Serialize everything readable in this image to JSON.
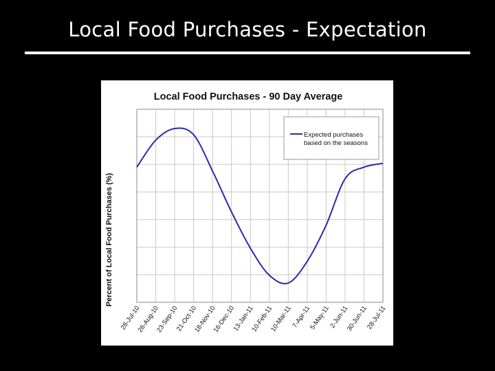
{
  "slide": {
    "title": "Local Food Purchases - Expectation"
  },
  "chart_data": {
    "type": "line",
    "title": "Local Food Purchases - 90 Day Average",
    "xlabel": "",
    "ylabel": "Percent of Local Food Purchases (%)",
    "x_tick_labels": [
      "28-Jul-10",
      "26-Aug-10",
      "23-Sep-10",
      "21-Oct-10",
      "18-Nov-10",
      "16-Dec-10",
      "13-Jan-11",
      "10-Feb-11",
      "10-Mar-11",
      "7-Apr-11",
      "5-May-11",
      "2-Jun-11",
      "30-Jun-11",
      "28-Jul-11"
    ],
    "y_tick_labels_visible": false,
    "grid": true,
    "legend_position": "top-right",
    "colors": {
      "series": "#2a2ab0",
      "grid": "#c8c8c8",
      "background": "#ffffff"
    },
    "series": [
      {
        "name": "Expected purchases based on the seasons",
        "x": [
          "28-Jul-10",
          "26-Aug-10",
          "23-Sep-10",
          "21-Oct-10",
          "18-Nov-10",
          "16-Dec-10",
          "13-Jan-11",
          "10-Feb-11",
          "10-Mar-11",
          "7-Apr-11",
          "5-May-11",
          "2-Jun-11",
          "30-Jun-11",
          "28-Jul-11"
        ],
        "values": [
          0.5,
          0.85,
          1.0,
          0.92,
          0.45,
          -0.08,
          -0.55,
          -0.9,
          -1.0,
          -0.72,
          -0.25,
          0.35,
          0.5,
          0.55
        ]
      }
    ],
    "ylim": [
      -1.25,
      1.25
    ]
  }
}
